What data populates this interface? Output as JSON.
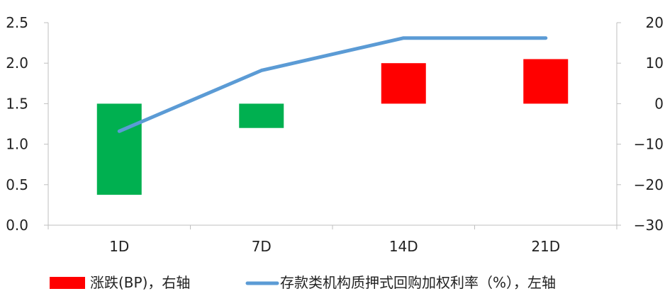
{
  "chart_data": {
    "type": "bar",
    "categories": [
      "1D",
      "7D",
      "14D",
      "21D"
    ],
    "left_axis": {
      "range": [
        0.0,
        2.5
      ],
      "ticks": [
        "0.0",
        "0.5",
        "1.0",
        "1.5",
        "2.0",
        "2.5"
      ]
    },
    "right_axis": {
      "range": [
        -30,
        20
      ],
      "ticks": [
        "−30",
        "−20",
        "−10",
        "0",
        "10",
        "20"
      ]
    },
    "series": [
      {
        "name": "涨跌(BP)，右轴",
        "type": "bar",
        "axis": "right",
        "values": [
          -22.5,
          -6,
          10,
          11
        ],
        "colors": [
          "#00b050",
          "#00b050",
          "#ff0000",
          "#ff0000"
        ]
      },
      {
        "name": "存款类机构质押式回购加权利率（%），左轴",
        "type": "line",
        "axis": "left",
        "color": "#5b9bd5",
        "values": [
          1.16,
          1.91,
          2.31,
          2.31
        ]
      }
    ],
    "legend_position": "bottom",
    "grid": false
  }
}
